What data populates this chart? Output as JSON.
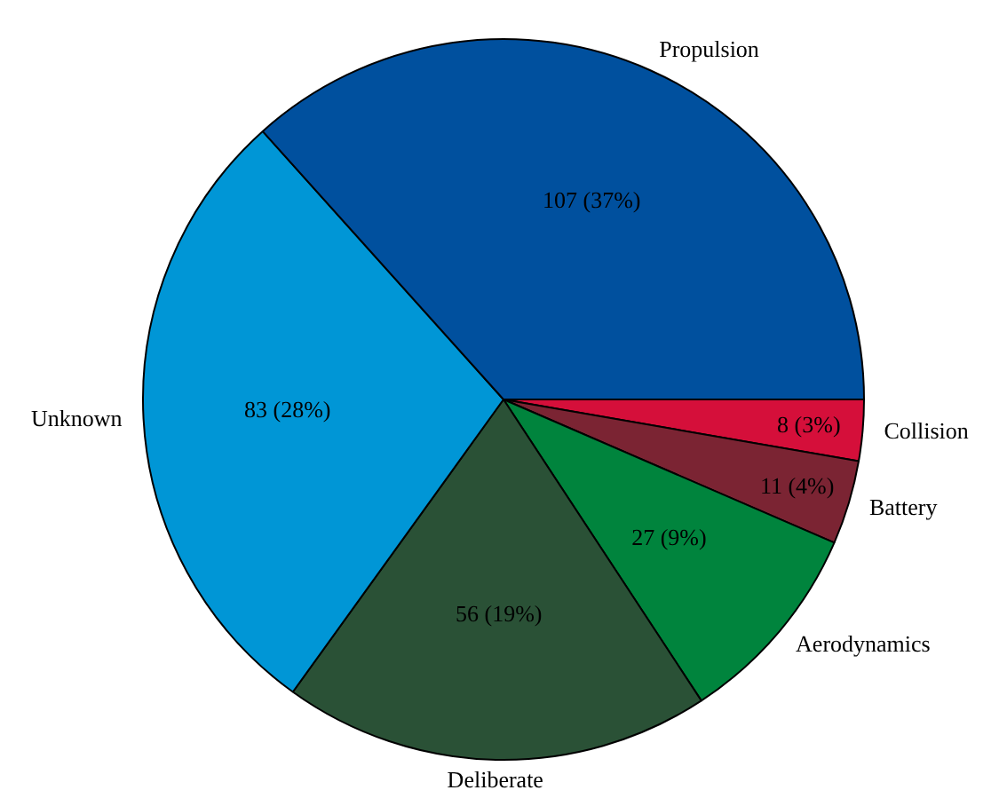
{
  "chart_data": {
    "type": "pie",
    "categories": [
      "Collision",
      "Battery",
      "Aerodynamics",
      "Deliberate",
      "Unknown",
      "Propulsion"
    ],
    "values": [
      8,
      11,
      27,
      56,
      83,
      107
    ],
    "colors": [
      "#d50f3a",
      "#7b2433",
      "#00843d",
      "#2a5136",
      "#0096d6",
      "#00509e"
    ],
    "value_labels": [
      "8 (3%)",
      "11 (4%)",
      "27 (9%)",
      "56 (19%)",
      "83 (28%)",
      "107 (37%)"
    ],
    "legend": false
  }
}
